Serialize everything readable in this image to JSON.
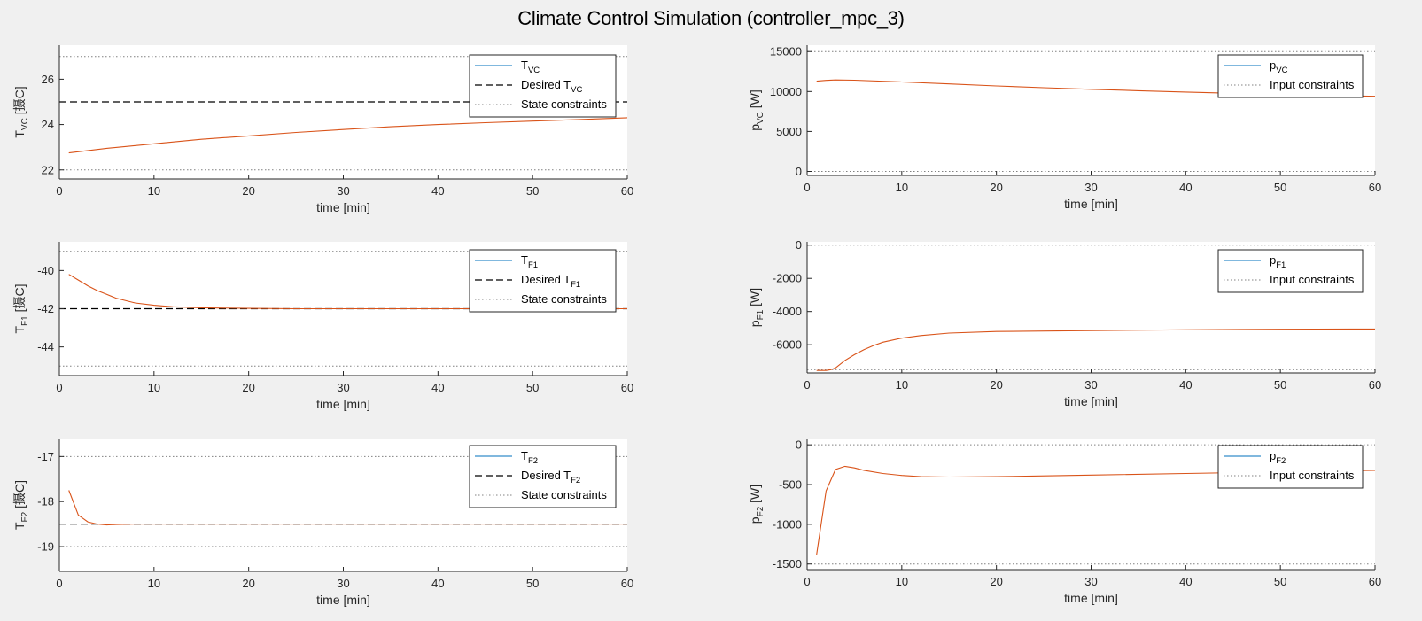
{
  "figure": {
    "title": "Climate Control Simulation (controller_mpc_3)"
  },
  "colors": {
    "response": "#d95319",
    "legend_line": "#0072bd",
    "reference": "#000000",
    "constraint": "#808080",
    "axes_bg": "#ffffff",
    "figure_bg": "#f0f0f0"
  },
  "chart_data": [
    {
      "id": "tvc",
      "type": "line",
      "xlabel": "time [min]",
      "ylabel_main": "T",
      "ylabel_sub": "VC",
      "ylabel_unit": " [摄C]",
      "xlim": [
        0,
        60
      ],
      "ylim": [
        21.6,
        27.5
      ],
      "xticks": [
        0,
        10,
        20,
        30,
        40,
        50,
        60
      ],
      "yticks": [
        22,
        24,
        26
      ],
      "legend": [
        {
          "main": "T",
          "sub": "VC",
          "post": "",
          "style": "solid"
        },
        {
          "main": "Desired T",
          "sub": "VC",
          "post": "",
          "style": "dashed"
        },
        {
          "main": "State constraints",
          "sub": "",
          "post": "",
          "style": "dotted"
        }
      ],
      "series": [
        {
          "style": "solid",
          "x": [
            1,
            5,
            10,
            15,
            20,
            25,
            30,
            35,
            40,
            45,
            50,
            55,
            60
          ],
          "y": [
            22.75,
            22.95,
            23.15,
            23.35,
            23.5,
            23.65,
            23.78,
            23.9,
            24.0,
            24.08,
            24.15,
            24.22,
            24.3
          ]
        }
      ],
      "reference": [
        25
      ],
      "constraints": [
        22,
        27
      ]
    },
    {
      "id": "pvc",
      "type": "line",
      "xlabel": "time [min]",
      "ylabel_main": "p",
      "ylabel_sub": "VC",
      "ylabel_unit": " [W]",
      "xlim": [
        0,
        60
      ],
      "ylim": [
        -500,
        15800
      ],
      "xticks": [
        0,
        10,
        20,
        30,
        40,
        50,
        60
      ],
      "yticks": [
        0,
        5000,
        10000,
        15000
      ],
      "legend": [
        {
          "main": "p",
          "sub": "VC",
          "post": "",
          "style": "solid"
        },
        {
          "main": "Input constraints",
          "sub": "",
          "post": "",
          "style": "dotted"
        }
      ],
      "series": [
        {
          "style": "solid",
          "x": [
            1,
            2,
            3,
            5,
            10,
            15,
            20,
            25,
            30,
            35,
            40,
            45,
            50,
            55,
            60
          ],
          "y": [
            11300,
            11400,
            11450,
            11420,
            11200,
            10950,
            10700,
            10480,
            10280,
            10100,
            9930,
            9780,
            9640,
            9520,
            9400
          ]
        }
      ],
      "reference": [],
      "constraints": [
        0,
        15000
      ]
    },
    {
      "id": "tf1",
      "type": "line",
      "xlabel": "time [min]",
      "ylabel_main": "T",
      "ylabel_sub": "F1",
      "ylabel_unit": " [摄C]",
      "xlim": [
        0,
        60
      ],
      "ylim": [
        -45.5,
        -38.5
      ],
      "xticks": [
        0,
        10,
        20,
        30,
        40,
        50,
        60
      ],
      "yticks": [
        -44,
        -42,
        -40
      ],
      "legend": [
        {
          "main": "T",
          "sub": "F1",
          "post": "",
          "style": "solid"
        },
        {
          "main": "Desired T",
          "sub": "F1",
          "post": "",
          "style": "dashed"
        },
        {
          "main": "State constraints",
          "sub": "",
          "post": "",
          "style": "dotted"
        }
      ],
      "series": [
        {
          "style": "solid",
          "x": [
            1,
            2,
            3,
            4,
            5,
            6,
            8,
            10,
            12,
            15,
            20,
            25,
            30,
            40,
            50,
            60
          ],
          "y": [
            -40.2,
            -40.5,
            -40.8,
            -41.05,
            -41.25,
            -41.45,
            -41.7,
            -41.82,
            -41.9,
            -41.95,
            -41.98,
            -42.0,
            -42.0,
            -42.0,
            -42.0,
            -42.0
          ]
        }
      ],
      "reference": [
        -42
      ],
      "constraints": [
        -39,
        -45
      ]
    },
    {
      "id": "pf1",
      "type": "line",
      "xlabel": "time [min]",
      "ylabel_main": "p",
      "ylabel_sub": "F1",
      "ylabel_unit": " [W]",
      "xlim": [
        0,
        60
      ],
      "ylim": [
        -7700,
        200
      ],
      "xticks": [
        0,
        10,
        20,
        30,
        40,
        50,
        60
      ],
      "yticks": [
        -6000,
        -4000,
        -2000,
        0
      ],
      "legend": [
        {
          "main": "p",
          "sub": "F1",
          "post": "",
          "style": "solid"
        },
        {
          "main": "Input constraints",
          "sub": "",
          "post": "",
          "style": "dotted"
        }
      ],
      "series": [
        {
          "style": "solid",
          "x": [
            1,
            2,
            2.5,
            3,
            4,
            5,
            6,
            7,
            8,
            10,
            12,
            15,
            20,
            30,
            40,
            50,
            60
          ],
          "y": [
            -7550,
            -7550,
            -7500,
            -7400,
            -6950,
            -6600,
            -6300,
            -6050,
            -5850,
            -5600,
            -5450,
            -5300,
            -5200,
            -5150,
            -5100,
            -5070,
            -5050
          ]
        }
      ],
      "reference": [],
      "constraints": [
        0,
        -7500
      ]
    },
    {
      "id": "tf2",
      "type": "line",
      "xlabel": "time [min]",
      "ylabel_main": "T",
      "ylabel_sub": "F2",
      "ylabel_unit": " [摄C]",
      "xlim": [
        0,
        60
      ],
      "ylim": [
        -19.55,
        -16.6
      ],
      "xticks": [
        0,
        10,
        20,
        30,
        40,
        50,
        60
      ],
      "yticks": [
        -19,
        -18,
        -17
      ],
      "legend": [
        {
          "main": "T",
          "sub": "F2",
          "post": "",
          "style": "solid"
        },
        {
          "main": "Desired T",
          "sub": "F2",
          "post": "",
          "style": "dashed"
        },
        {
          "main": "State constraints",
          "sub": "",
          "post": "",
          "style": "dotted"
        }
      ],
      "series": [
        {
          "style": "solid",
          "x": [
            1,
            2,
            3,
            4,
            5,
            6,
            8,
            10,
            20,
            30,
            40,
            50,
            60
          ],
          "y": [
            -17.75,
            -18.3,
            -18.45,
            -18.5,
            -18.52,
            -18.51,
            -18.5,
            -18.5,
            -18.5,
            -18.5,
            -18.5,
            -18.5,
            -18.5
          ]
        }
      ],
      "reference": [
        -18.5
      ],
      "constraints": [
        -17,
        -19
      ]
    },
    {
      "id": "pf2",
      "type": "line",
      "xlabel": "time [min]",
      "ylabel_main": "p",
      "ylabel_sub": "F2",
      "ylabel_unit": " [W]",
      "xlim": [
        0,
        60
      ],
      "ylim": [
        -1570,
        80
      ],
      "xticks": [
        0,
        10,
        20,
        30,
        40,
        50,
        60
      ],
      "yticks": [
        -1500,
        -1000,
        -500,
        0
      ],
      "legend": [
        {
          "main": "p",
          "sub": "F2",
          "post": "",
          "style": "solid"
        },
        {
          "main": "Input constraints",
          "sub": "",
          "post": "",
          "style": "dotted"
        }
      ],
      "series": [
        {
          "style": "solid",
          "x": [
            1,
            2,
            3,
            4,
            5,
            6,
            8,
            10,
            12,
            15,
            20,
            30,
            40,
            50,
            60
          ],
          "y": [
            -1380,
            -580,
            -310,
            -270,
            -290,
            -320,
            -360,
            -385,
            -400,
            -405,
            -400,
            -380,
            -360,
            -340,
            -320
          ]
        }
      ],
      "reference": [],
      "constraints": [
        0,
        -1500
      ]
    }
  ]
}
